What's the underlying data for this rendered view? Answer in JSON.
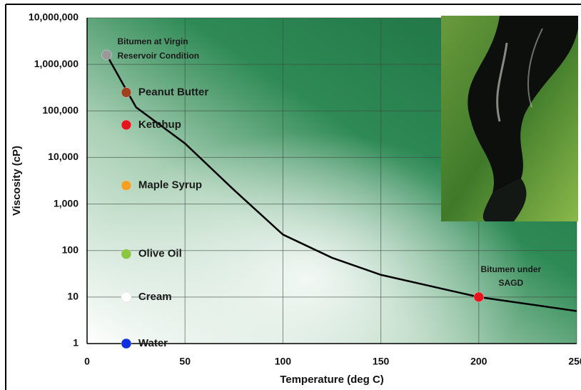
{
  "chart_data": {
    "type": "line",
    "log_y": true,
    "grid": true,
    "x_label": "Temperature (deg C)",
    "y_label": "Viscosity (cP)",
    "xlim": [
      0,
      250
    ],
    "xticks": [
      0,
      50,
      100,
      150,
      200,
      250
    ],
    "ylim": [
      1,
      10000000
    ],
    "yticks": [
      1,
      10,
      100,
      {
        "value": 1000,
        "label": "1,000"
      },
      {
        "value": 10000,
        "label": "10,000"
      },
      {
        "value": 100000,
        "label": "100,000"
      },
      {
        "value": 1000000,
        "label": "1,000,000"
      },
      {
        "value": 10000000,
        "label": "10,000,000"
      }
    ],
    "series": [
      {
        "color": "#000000",
        "x": [
          10,
          25,
          50,
          75,
          100,
          125,
          150,
          200,
          250
        ],
        "values": [
          1600000,
          120000,
          20000,
          2000,
          220,
          70,
          30,
          10,
          5
        ]
      }
    ],
    "points": [
      {
        "label": [
          "Bitumen at Virgin",
          "Reservoir Condition"
        ],
        "x": 10,
        "value": 1600000,
        "color": "#999999"
      },
      {
        "label": [
          "Peanut Butter"
        ],
        "x": 20,
        "value": 250000,
        "color": "#a0401c"
      },
      {
        "label": [
          "Ketchup"
        ],
        "x": 20,
        "value": 50000,
        "color": "#e8141c"
      },
      {
        "label": [
          "Maple Syrup"
        ],
        "x": 20,
        "value": 2500,
        "color": "#f5a020"
      },
      {
        "label": [
          "Olive Oil"
        ],
        "x": 20,
        "value": 84,
        "color": "#8cc63f"
      },
      {
        "label": [
          "Cream"
        ],
        "x": 20,
        "value": 10,
        "color": "#ffffff"
      },
      {
        "label": [
          "Water"
        ],
        "x": 20,
        "value": 1,
        "color": "#1030e0"
      },
      {
        "label": [
          "Bitumen under",
          "SAGD"
        ],
        "x": 200,
        "value": 10,
        "color": "#e8141c"
      }
    ]
  }
}
